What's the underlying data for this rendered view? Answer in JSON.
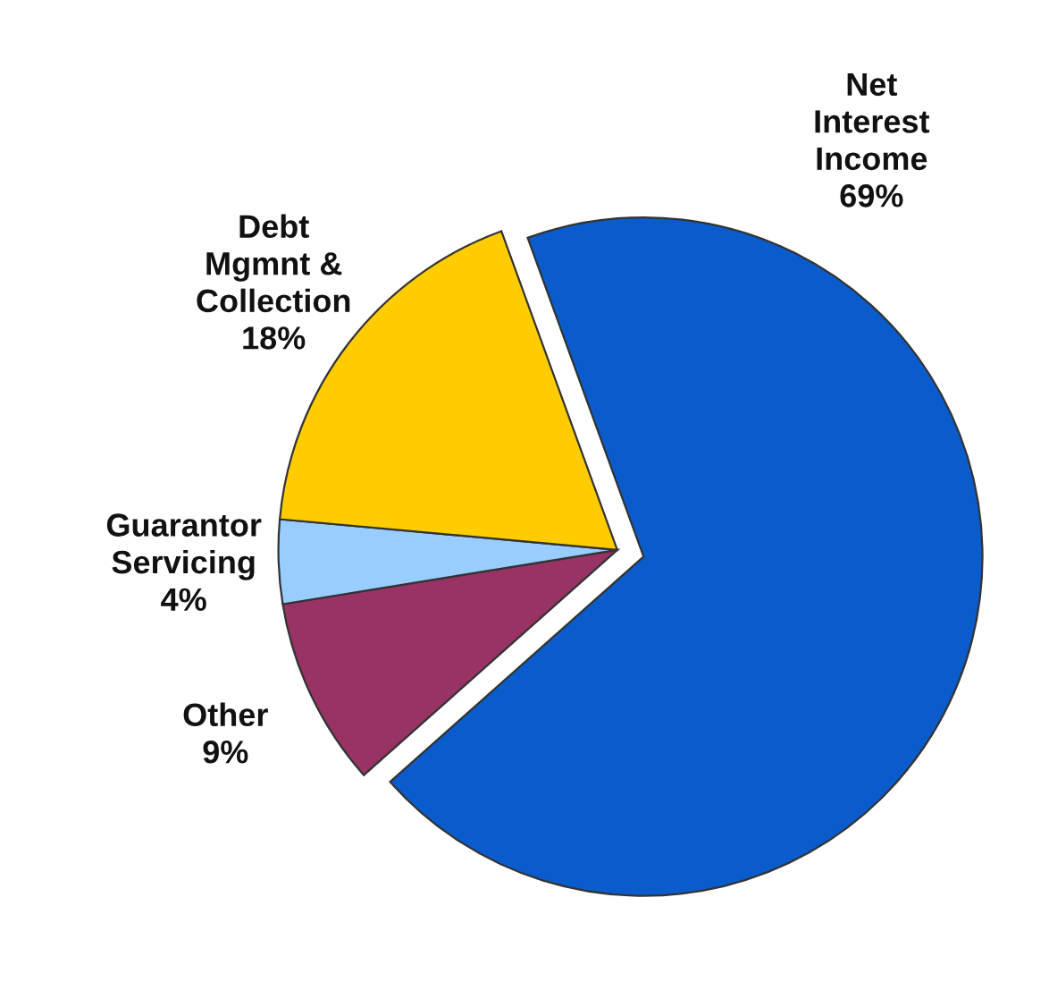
{
  "chart_data": {
    "type": "pie",
    "categories": [
      "Net Interest Income",
      "Other",
      "Guarantor Servicing",
      "Debt Mgmnt & Collection"
    ],
    "values": [
      69,
      9,
      4,
      18
    ],
    "value_labels": [
      "69%",
      "9%",
      "4%",
      "18%"
    ],
    "colors": [
      "#0a5ccc",
      "#993366",
      "#99ccff",
      "#ffcc00"
    ],
    "legend": false
  }
}
